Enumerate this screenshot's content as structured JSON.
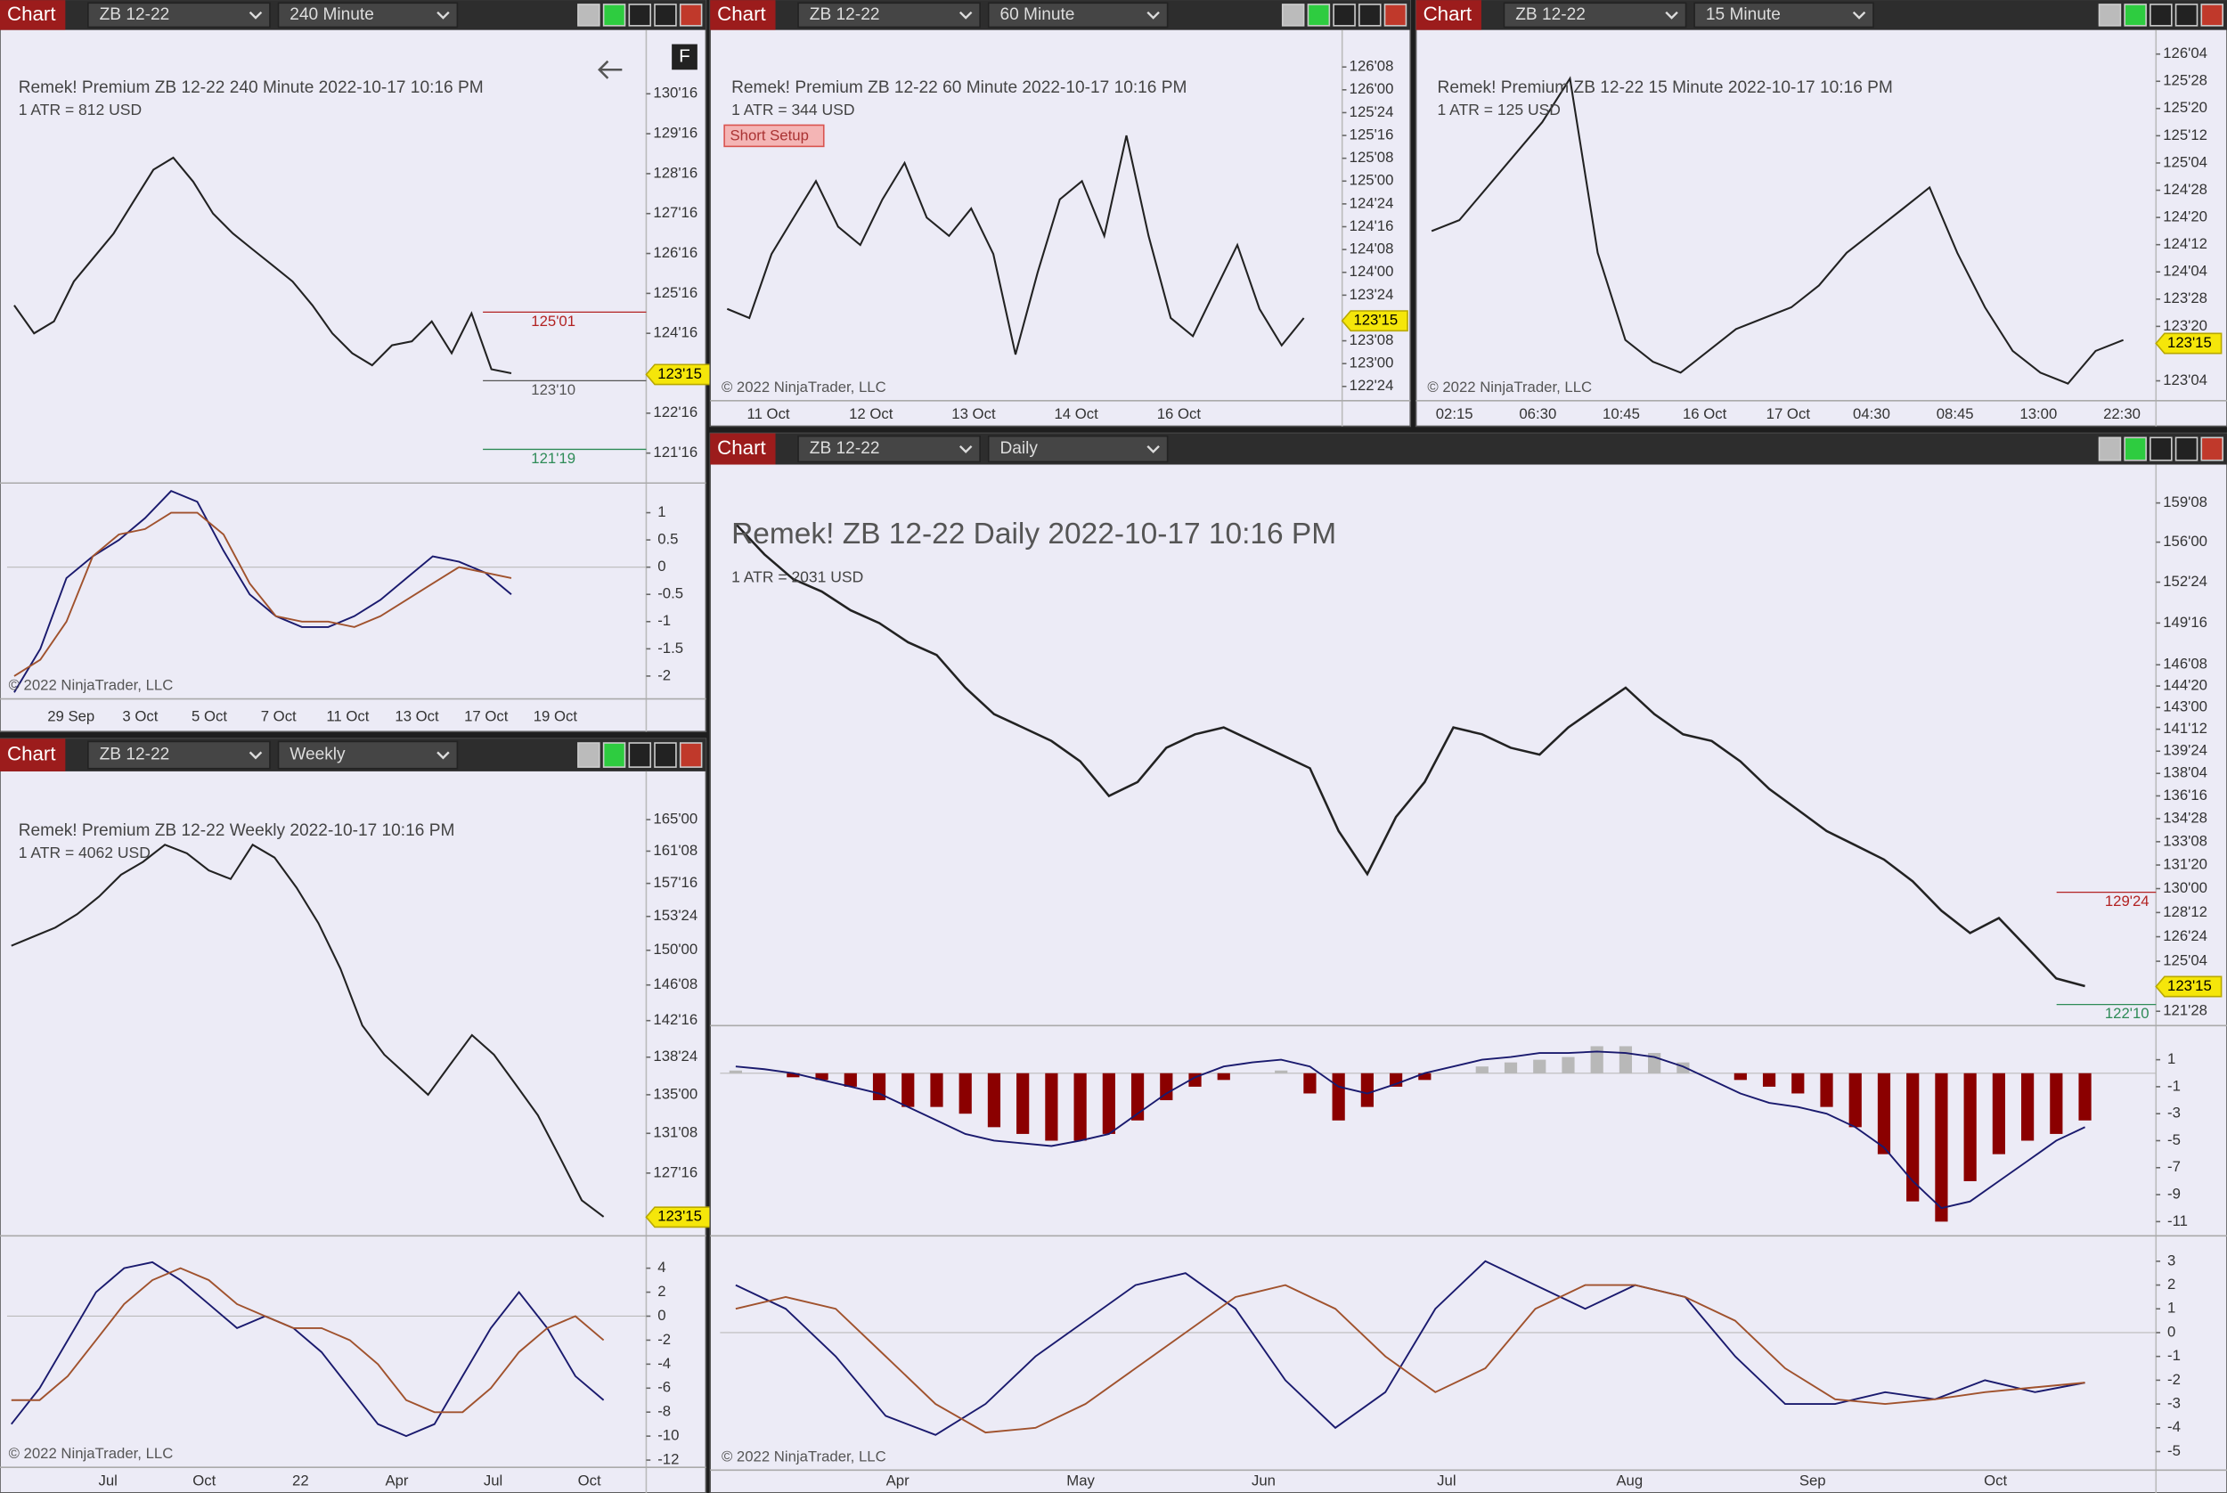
{
  "windows": [
    {
      "tab": "Chart",
      "instrument": "ZB 12-22",
      "interval": "240 Minute",
      "title": "Remek!  Premium  ZB 12-22  240 Minute  2022-10-17 10:16 PM",
      "atr": "1 ATR = 812 USD",
      "copyright": "© 2022 NinjaTrader, LLC",
      "button": "F",
      "last_price": {
        "value": 123.46875,
        "label": "123'15"
      },
      "price": {
        "log": false,
        "color": "#222222",
        "ylim": [
          120.75,
          131.85
        ],
        "yticks": [
          {
            "value": 130.5,
            "label": "130'16"
          },
          {
            "value": 129.5,
            "label": "129'16"
          },
          {
            "value": 128.5,
            "label": "128'16"
          },
          {
            "value": 127.5,
            "label": "127'16"
          },
          {
            "value": 126.5,
            "label": "126'16"
          },
          {
            "value": 125.5,
            "label": "125'16"
          },
          {
            "value": 124.5,
            "label": "124'16"
          },
          {
            "value": 122.5,
            "label": "122'16"
          },
          {
            "value": 121.5,
            "label": "121'16"
          }
        ],
        "values": [
          125.2,
          124.5,
          124.8,
          125.8,
          126.4,
          127.0,
          127.8,
          128.6,
          128.9,
          128.3,
          127.5,
          127.0,
          126.6,
          126.2,
          125.8,
          125.2,
          124.5,
          124.0,
          123.7,
          124.2,
          124.3,
          124.8,
          124.0,
          125.0,
          123.6,
          123.5
        ]
      },
      "levels": [
        {
          "value": 125.03125,
          "label": "125'01",
          "color": "#b22222"
        },
        {
          "value": 123.3125,
          "label": "123'10",
          "color": "#555555"
        },
        {
          "value": 121.59375,
          "label": "121'19",
          "color": "#2e8b57"
        }
      ],
      "panels": [
        {
          "ylim": [
            -2.42,
            1.545
          ],
          "yticks": [
            1,
            0.5,
            0,
            -0.5,
            -1,
            -1.5,
            -2
          ],
          "series": [
            {
              "color": "#1a1a6e",
              "values": [
                -2.3,
                -1.5,
                -0.2,
                0.2,
                0.5,
                0.9,
                1.4,
                1.2,
                0.3,
                -0.5,
                -0.9,
                -1.1,
                -1.1,
                -0.9,
                -0.6,
                -0.2,
                0.2,
                0.1,
                -0.1,
                -0.5
              ]
            },
            {
              "color": "#a0522d",
              "values": [
                -2.0,
                -1.7,
                -1.0,
                0.2,
                0.6,
                0.7,
                1.0,
                1.0,
                0.6,
                -0.3,
                -0.9,
                -1.0,
                -1.0,
                -1.1,
                -0.9,
                -0.6,
                -0.3,
                0,
                -0.1,
                -0.2
              ]
            }
          ]
        }
      ],
      "time_labels": [
        "29 Sep",
        "3 Oct",
        "5 Oct",
        "7 Oct",
        "11 Oct",
        "13 Oct",
        "17 Oct",
        "19 Oct"
      ]
    },
    {
      "tab": "Chart",
      "instrument": "ZB 12-22",
      "interval": "60 Minute",
      "title": "Remek!  Premium  ZB 12-22  60 Minute  2022-10-17 10:16 PM",
      "atr": "1 ATR = 344 USD",
      "copyright": "© 2022 NinjaTrader, LLC",
      "setup": "Short Setup",
      "last_price": {
        "value": 123.46875,
        "label": "123'15"
      },
      "price": {
        "log": false,
        "color": "#222222",
        "ylim": [
          122.594,
          126.547
        ],
        "yticks": [
          {
            "value": 126.25,
            "label": "126'08"
          },
          {
            "value": 126,
            "label": "126'00"
          },
          {
            "value": 125.75,
            "label": "125'24"
          },
          {
            "value": 125.5,
            "label": "125'16"
          },
          {
            "value": 125.25,
            "label": "125'08"
          },
          {
            "value": 125,
            "label": "125'00"
          },
          {
            "value": 124.75,
            "label": "124'24"
          },
          {
            "value": 124.5,
            "label": "124'16"
          },
          {
            "value": 124.25,
            "label": "124'08"
          },
          {
            "value": 124,
            "label": "124'00"
          },
          {
            "value": 123.75,
            "label": "123'24"
          },
          {
            "value": 123.25,
            "label": "123'08"
          },
          {
            "value": 123,
            "label": "123'00"
          },
          {
            "value": 122.75,
            "label": "122'24"
          }
        ],
        "values": [
          123.6,
          123.5,
          124.2,
          124.6,
          125.0,
          124.5,
          124.3,
          124.8,
          125.2,
          124.6,
          124.4,
          124.7,
          124.2,
          123.1,
          124.0,
          124.8,
          125.0,
          124.4,
          125.5,
          124.4,
          123.5,
          123.3,
          123.8,
          124.3,
          123.6,
          123.2,
          123.5
        ]
      },
      "levels": [],
      "panels": [],
      "time_labels": [
        "11 Oct",
        "12 Oct",
        "13 Oct",
        "14 Oct",
        "16 Oct"
      ]
    },
    {
      "tab": "Chart",
      "instrument": "ZB 12-22",
      "interval": "15 Minute",
      "title": "Remek!  Premium  ZB 12-22  15 Minute  2022-10-17 10:16 PM",
      "atr": "1 ATR = 125 USD",
      "copyright": "© 2022 NinjaTrader, LLC",
      "last_price": {
        "value": 123.46875,
        "label": "123'15"
      },
      "price": {
        "log": false,
        "color": "#222222",
        "ylim": [
          122.943,
          126.255
        ],
        "yticks": [
          {
            "value": 126.125,
            "label": "126'04"
          },
          {
            "value": 125.875,
            "label": "125'28"
          },
          {
            "value": 125.625,
            "label": "125'20"
          },
          {
            "value": 125.375,
            "label": "125'12"
          },
          {
            "value": 125.125,
            "label": "125'04"
          },
          {
            "value": 124.875,
            "label": "124'28"
          },
          {
            "value": 124.625,
            "label": "124'20"
          },
          {
            "value": 124.375,
            "label": "124'12"
          },
          {
            "value": 124.125,
            "label": "124'04"
          },
          {
            "value": 123.875,
            "label": "123'28"
          },
          {
            "value": 123.625,
            "label": "123'20"
          },
          {
            "value": 123.125,
            "label": "123'04"
          }
        ],
        "values": [
          124.5,
          124.6,
          124.9,
          125.2,
          125.5,
          125.9,
          124.3,
          123.5,
          123.3,
          123.2,
          123.4,
          123.6,
          123.7,
          123.8,
          124.0,
          124.3,
          124.5,
          124.7,
          124.9,
          124.3,
          123.8,
          123.4,
          123.2,
          123.1,
          123.4,
          123.5
        ]
      },
      "levels": [],
      "panels": [],
      "time_labels": [
        "02:15",
        "06:30",
        "10:45",
        "16 Oct",
        "17 Oct",
        "04:30",
        "08:45",
        "13:00",
        "22:30"
      ]
    },
    {
      "tab": "Chart",
      "instrument": "ZB 12-22",
      "interval": "Weekly",
      "title": "Remek!  Premium  ZB 12-22  Weekly  2022-10-17 10:16 PM",
      "atr": "1 ATR = 4062 USD",
      "copyright": "© 2022 NinjaTrader, LLC",
      "last_price": {
        "value": 123.46875,
        "label": "123'15"
      },
      "price": {
        "log": true,
        "color": "#222222",
        "ylim": [
          121.8,
          169.5
        ],
        "yticks": [
          {
            "value": 165,
            "label": "165'00"
          },
          {
            "value": 161.25,
            "label": "161'08"
          },
          {
            "value": 157.5,
            "label": "157'16"
          },
          {
            "value": 153.75,
            "label": "153'24"
          },
          {
            "value": 150,
            "label": "150'00"
          },
          {
            "value": 146.25,
            "label": "146'08"
          },
          {
            "value": 142.5,
            "label": "142'16"
          },
          {
            "value": 138.75,
            "label": "138'24"
          },
          {
            "value": 135,
            "label": "135'00"
          },
          {
            "value": 131.25,
            "label": "131'08"
          },
          {
            "value": 127.5,
            "label": "127'16"
          }
        ],
        "values": [
          150.5,
          151.5,
          152.5,
          154,
          156,
          158.5,
          160,
          162,
          161,
          159,
          158,
          162,
          160.5,
          157,
          153,
          148,
          142,
          139,
          137,
          135,
          138,
          141,
          139,
          136,
          133,
          129,
          125,
          123.5
        ]
      },
      "levels": [],
      "panels": [
        {
          "ylim": [
            -12.6,
            6.7
          ],
          "yticks": [
            4,
            2,
            0,
            -2,
            -4,
            -6,
            -8,
            -10,
            -12
          ],
          "series": [
            {
              "color": "#1a1a6e",
              "values": [
                -9,
                -6,
                -2,
                2,
                4,
                4.5,
                3,
                1,
                -1,
                0,
                -1,
                -3,
                -6,
                -9,
                -10,
                -9,
                -5,
                -1,
                2,
                -1,
                -5,
                -7
              ]
            },
            {
              "color": "#a0522d",
              "values": [
                -7,
                -7,
                -5,
                -2,
                1,
                3,
                4,
                3,
                1,
                0,
                -1,
                -1,
                -2,
                -4,
                -7,
                -8,
                -8,
                -6,
                -3,
                -1,
                0,
                -2
              ]
            }
          ]
        }
      ],
      "time_labels": [
        "Jul",
        "Oct",
        "22",
        "Apr",
        "Jul",
        "Oct"
      ]
    },
    {
      "tab": "Chart",
      "instrument": "ZB 12-22",
      "interval": "Daily",
      "title": "Remek!  ZB 12-22  Daily  2022-10-17 10:16 PM",
      "atr": "1 ATR = 2031 USD",
      "copyright": "© 2022 NinjaTrader, LLC",
      "last_price": {
        "value": 123.46875,
        "label": "123'15"
      },
      "price": {
        "log": true,
        "color": "#222222",
        "ylim": [
          120.96,
          161.29
        ],
        "yticks": [
          {
            "value": 159.25,
            "label": "159'08"
          },
          {
            "value": 156,
            "label": "156'00"
          },
          {
            "value": 152.75,
            "label": "152'24"
          },
          {
            "value": 149.5,
            "label": "149'16"
          },
          {
            "value": 146.25,
            "label": "146'08"
          },
          {
            "value": 144.625,
            "label": "144'20"
          },
          {
            "value": 143,
            "label": "143'00"
          },
          {
            "value": 141.375,
            "label": "141'12"
          },
          {
            "value": 139.75,
            "label": "139'24"
          },
          {
            "value": 138.125,
            "label": "138'04"
          },
          {
            "value": 136.5,
            "label": "136'16"
          },
          {
            "value": 134.875,
            "label": "134'28"
          },
          {
            "value": 133.25,
            "label": "133'08"
          },
          {
            "value": 131.625,
            "label": "131'20"
          },
          {
            "value": 130,
            "label": "130'00"
          },
          {
            "value": 128.375,
            "label": "128'12"
          },
          {
            "value": 126.75,
            "label": "126'24"
          },
          {
            "value": 125.125,
            "label": "125'04"
          },
          {
            "value": 121.875,
            "label": "121'28"
          }
        ],
        "values": [
          157.5,
          155,
          153,
          152,
          150.5,
          149.5,
          148,
          147,
          144.5,
          142.5,
          141.5,
          140.5,
          139,
          136.5,
          137.5,
          140,
          141,
          141.5,
          140.5,
          139.5,
          138.5,
          134,
          131,
          135,
          137.5,
          141.5,
          141,
          140,
          139.5,
          141.5,
          143,
          144.5,
          142.5,
          141,
          140.5,
          139,
          137,
          135.5,
          134,
          133,
          132,
          130.5,
          128.5,
          127,
          128,
          126,
          124,
          123.5
        ]
      },
      "levels": [
        {
          "value": 129.75,
          "label": "129'24",
          "color": "#b22222"
        },
        {
          "value": 122.3125,
          "label": "122'10",
          "color": "#2e8b57"
        }
      ],
      "panels": [
        {
          "ylim": [
            -12.05,
            3.53
          ],
          "yticks": [
            1,
            -1,
            -3,
            -5,
            -7,
            -9,
            -11
          ],
          "bars": {
            "up_color": "#b8b8b8",
            "down_color": "#8b0000",
            "values": [
              0.2,
              0,
              -0.3,
              -0.5,
              -1,
              -2,
              -2.5,
              -2.5,
              -3,
              -4,
              -4.5,
              -5,
              -5,
              -4.5,
              -3.5,
              -2,
              -1,
              -0.5,
              0,
              0.2,
              -1.5,
              -3.5,
              -2.5,
              -1,
              -0.5,
              0,
              0.5,
              0.8,
              1,
              1.2,
              2,
              2,
              1.5,
              0.8,
              0,
              -0.5,
              -1,
              -1.5,
              -2.5,
              -4,
              -6,
              -9.5,
              -11,
              -8,
              -6,
              -5,
              -4.5,
              -3.5
            ]
          },
          "series": [
            {
              "color": "#1a1a6e",
              "values": [
                0.5,
                0.3,
                0,
                -0.5,
                -1,
                -1.5,
                -2.5,
                -3.5,
                -4.5,
                -5,
                -5.2,
                -5.4,
                -5,
                -4.5,
                -3,
                -1.5,
                -0.3,
                0.5,
                0.8,
                1,
                0.5,
                -1,
                -1.5,
                -0.8,
                0,
                0.5,
                1,
                1.2,
                1.5,
                1.5,
                1.6,
                1.5,
                1.2,
                0.5,
                -0.5,
                -1.5,
                -2.2,
                -2.5,
                -3,
                -4,
                -5.5,
                -8,
                -10,
                -9.5,
                -8,
                -6.5,
                -5,
                -4
              ]
            }
          ]
        },
        {
          "ylim": [
            -5.78,
            4.07
          ],
          "yticks": [
            3,
            2,
            1,
            0,
            -1,
            -2,
            -3,
            -4,
            -5
          ],
          "series": [
            {
              "color": "#1a1a6e",
              "values": [
                2,
                1,
                -1,
                -3.5,
                -4.3,
                -3,
                -1,
                0.5,
                2,
                2.5,
                1,
                -2,
                -4,
                -2.5,
                1,
                3,
                2,
                1,
                2,
                1.5,
                -1,
                -3,
                -3,
                -2.5,
                -2.8,
                -2,
                -2.5,
                -2.1
              ]
            },
            {
              "color": "#a0522d",
              "values": [
                1,
                1.5,
                1,
                -1,
                -3,
                -4.2,
                -4,
                -3,
                -1.5,
                0,
                1.5,
                2,
                1,
                -1,
                -2.5,
                -1.5,
                1,
                2,
                2,
                1.5,
                0.5,
                -1.5,
                -2.8,
                -3,
                -2.8,
                -2.5,
                -2.3,
                -2.1
              ]
            }
          ]
        }
      ],
      "time_labels": [
        "Apr",
        "May",
        "Jun",
        "Jul",
        "Aug",
        "Sep",
        "Oct"
      ]
    }
  ]
}
